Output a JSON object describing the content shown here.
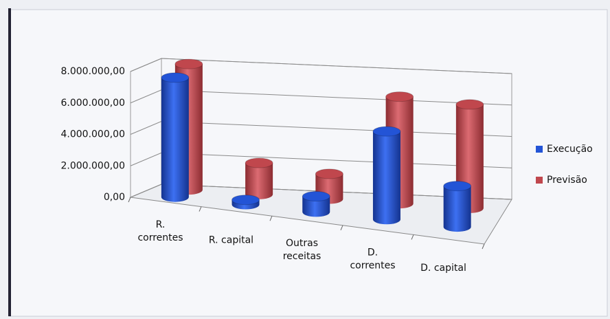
{
  "chart_data": {
    "type": "bar3d-cylinder",
    "categories": [
      "R. correntes",
      "R. capital",
      "Outras receitas",
      "D. correntes",
      "D. capital"
    ],
    "series": [
      {
        "name": "Execução",
        "color": "#2354d6",
        "values": [
          7600000,
          300000,
          1000000,
          5600000,
          2600000
        ]
      },
      {
        "name": "Previsão",
        "color": "#c0474d",
        "values": [
          8000000,
          2000000,
          1600000,
          6800000,
          6600000
        ]
      }
    ],
    "ylim": [
      0,
      8000000
    ],
    "yticks": [
      {
        "value": 0,
        "label": "0,00"
      },
      {
        "value": 2000000,
        "label": "2.000.000,00"
      },
      {
        "value": 4000000,
        "label": "4.000.000,00"
      },
      {
        "value": 6000000,
        "label": "6.000.000,00"
      },
      {
        "value": 8000000,
        "label": "8.000.000,00"
      }
    ],
    "grid": true,
    "legend": "right"
  }
}
